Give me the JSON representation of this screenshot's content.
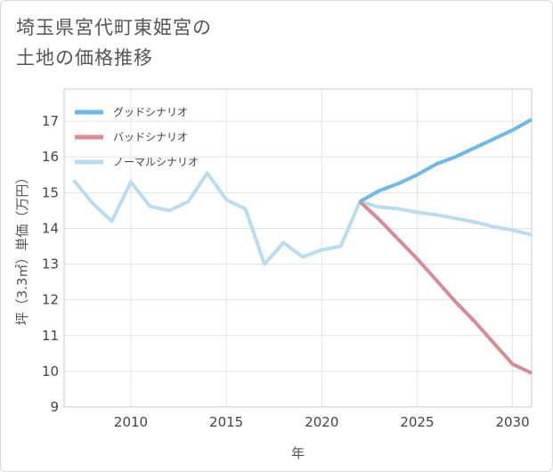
{
  "header": {
    "title_line1": "埼玉県宮代町東姫宮の",
    "title_line2": "土地の価格推移"
  },
  "chart_data": {
    "type": "line",
    "title": "埼玉県宮代町東姫宮の土地の価格推移",
    "xlabel": "年",
    "ylabel": "坪（3.3㎡）単価（万円）",
    "xlim": [
      2006.5,
      2031
    ],
    "ylim": [
      9,
      17.9
    ],
    "xticks": [
      2010,
      2015,
      2020,
      2025,
      2030
    ],
    "yticks": [
      9,
      10,
      11,
      12,
      13,
      14,
      15,
      16,
      17
    ],
    "grid": true,
    "legend_position": "top-left",
    "series": [
      {
        "name": "グッドシナリオ",
        "color": "#6cb8ea",
        "x": [
          2022,
          2023,
          2024,
          2025,
          2026,
          2027,
          2028,
          2029,
          2030,
          2031
        ],
        "values": [
          14.75,
          15.05,
          15.25,
          15.5,
          15.8,
          16.0,
          16.25,
          16.5,
          16.75,
          17.05
        ]
      },
      {
        "name": "バッドシナリオ",
        "color": "#d98a93",
        "x": [
          2022,
          2023,
          2024,
          2025,
          2026,
          2027,
          2028,
          2029,
          2030,
          2031
        ],
        "values": [
          14.75,
          14.25,
          13.7,
          13.15,
          12.55,
          11.95,
          11.4,
          10.8,
          10.2,
          9.95
        ]
      },
      {
        "name": "ノーマルシナリオ",
        "color": "#b9dcef",
        "x": [
          2007,
          2008,
          2009,
          2010,
          2011,
          2012,
          2013,
          2014,
          2015,
          2016,
          2017,
          2018,
          2019,
          2020,
          2021,
          2022,
          2023,
          2024,
          2025,
          2026,
          2027,
          2028,
          2029,
          2030,
          2031
        ],
        "values": [
          15.35,
          14.7,
          14.2,
          15.3,
          14.62,
          14.5,
          14.75,
          15.55,
          14.8,
          14.55,
          13.0,
          13.6,
          13.2,
          13.4,
          13.5,
          14.75,
          14.6,
          14.55,
          14.45,
          14.38,
          14.28,
          14.18,
          14.05,
          13.95,
          13.82
        ]
      }
    ]
  }
}
